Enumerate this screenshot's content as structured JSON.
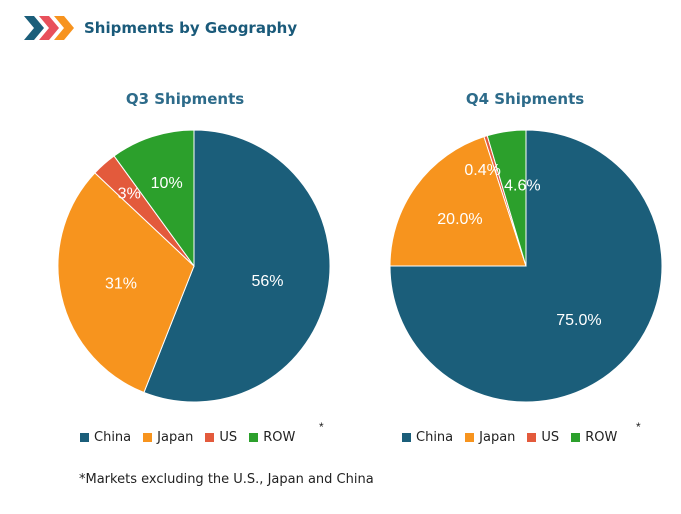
{
  "header": {
    "title": "Shipments by Geography",
    "logo_colors": [
      "#1b5e7a",
      "#e8505b",
      "#f7931e"
    ]
  },
  "colors": {
    "China": "#1b5e7a",
    "Japan": "#f7941e",
    "US": "#e35a3c",
    "ROW": "#2ca02c"
  },
  "chart_data": [
    {
      "type": "pie",
      "title": "Q3 Shipments",
      "categories": [
        "China",
        "Japan",
        "US",
        "ROW"
      ],
      "values": [
        56,
        31,
        3,
        10
      ],
      "labels": [
        "56%",
        "31%",
        "3%",
        "10%"
      ],
      "legend": [
        "China",
        "Japan",
        "US",
        "ROW"
      ],
      "legend_position": "bottom",
      "asterisk": "*"
    },
    {
      "type": "pie",
      "title": "Q4 Shipments",
      "categories": [
        "China",
        "Japan",
        "US",
        "ROW"
      ],
      "values": [
        75.0,
        20.0,
        0.4,
        4.6
      ],
      "labels": [
        "75.0%",
        "20.0%",
        "0.4%",
        "4.6%"
      ],
      "legend": [
        "China",
        "Japan",
        "US",
        "ROW"
      ],
      "legend_position": "bottom",
      "asterisk": "*"
    }
  ],
  "footnote": "*Markets excluding the U.S., Japan and China"
}
